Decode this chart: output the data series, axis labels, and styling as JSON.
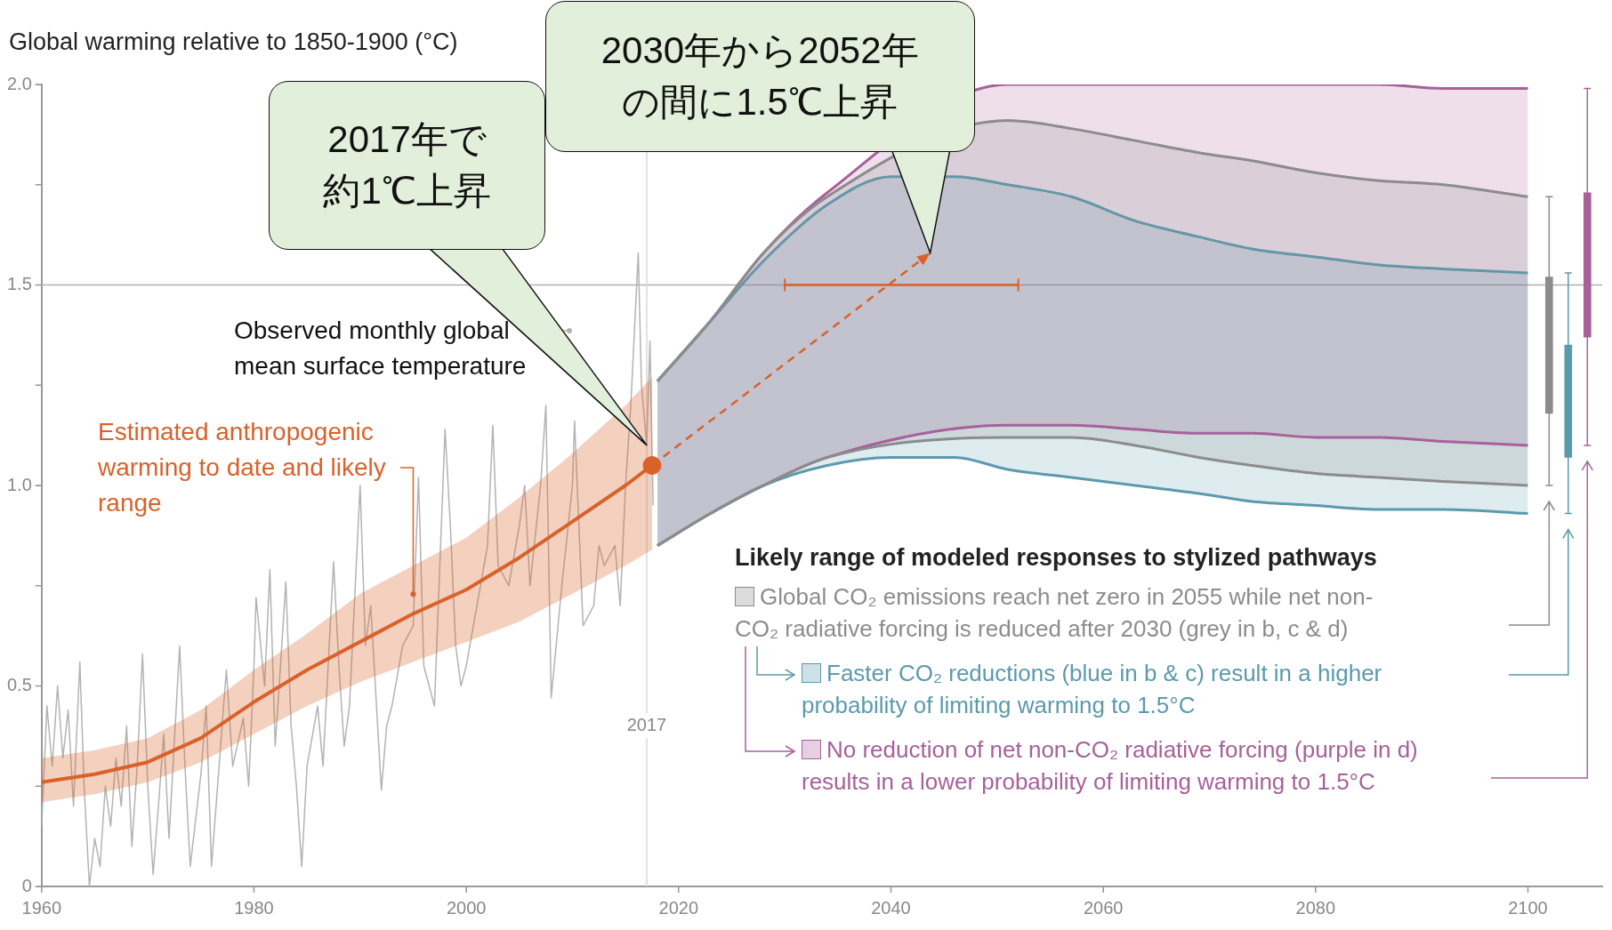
{
  "chart_data": {
    "type": "line",
    "ylabel": "Global warming relative to 1850-1900 (°C)",
    "xlim": [
      1960,
      2107
    ],
    "xticks": [
      1960,
      1980,
      2000,
      2020,
      2040,
      2060,
      2080,
      2100
    ],
    "ylim": [
      0,
      2
    ],
    "yticks": [
      0,
      {
        "value": 0.25,
        "label": null
      },
      0.5,
      {
        "value": 0.75,
        "label": null
      },
      {
        "value": 1,
        "label": "1.0"
      },
      {
        "value": 1.25,
        "label": null
      },
      1.5,
      {
        "value": 1.75,
        "label": null
      },
      {
        "value": 2,
        "label": "2.0"
      }
    ],
    "legend": "bottom right",
    "legend_title": "Likely range of modeled responses to stylized pathways",
    "series": [
      {
        "name": "Observed monthly global mean surface temperature",
        "color": "#b3b3b3",
        "x": [
          1960,
          1960.5,
          1961,
          1961.5,
          1962,
          1962.5,
          1963,
          1963.6,
          1964,
          1964.5,
          1965,
          1965.5,
          1966,
          1966.5,
          1967,
          1967.5,
          1968,
          1968.5,
          1969,
          1969.5,
          1970,
          1970.5,
          1971,
          1971.5,
          1972,
          1973,
          1973.5,
          1974,
          1975,
          1975.5,
          1976,
          1977,
          1977.4,
          1978,
          1979,
          1979.5,
          1980,
          1980.2,
          1981,
          1981.5,
          1982,
          1982.5,
          1983,
          1983.5,
          1984,
          1984.5,
          1985,
          1986,
          1986.5,
          1987.5,
          1988,
          1988.5,
          1989,
          1990,
          1990.5,
          1991,
          1992,
          1992.5,
          1993,
          1994,
          1995,
          1995.5,
          1996,
          1997,
          1998,
          1998.5,
          1999,
          1999.5,
          2000,
          2001,
          2002,
          2002.5,
          2003,
          2004,
          2005,
          2005.5,
          2006,
          2007,
          2007.5,
          2008,
          2009,
          2010,
          2010.2,
          2011,
          2012,
          2012.5,
          2013,
          2014,
          2014.5,
          2015,
          2015.5,
          2016.2,
          2016.5,
          2017,
          2017.3,
          2017.6
        ],
        "values": [
          0.15,
          0.45,
          0.3,
          0.5,
          0.32,
          0.44,
          0.2,
          0.56,
          0.25,
          0,
          0.12,
          0.05,
          0.25,
          0.15,
          0.32,
          0.2,
          0.4,
          0.1,
          0.3,
          0.58,
          0.25,
          0.03,
          0.2,
          0.38,
          0.12,
          0.6,
          0.3,
          0.05,
          0.28,
          0.45,
          0.05,
          0.4,
          0.54,
          0.3,
          0.42,
          0.25,
          0.55,
          0.72,
          0.5,
          0.79,
          0.35,
          0.55,
          0.76,
          0.4,
          0.25,
          0.05,
          0.3,
          0.45,
          0.3,
          0.81,
          0.55,
          0.35,
          0.45,
          1.0,
          0.6,
          0.7,
          0.24,
          0.4,
          0.45,
          0.6,
          0.65,
          1.02,
          0.55,
          0.45,
          1.14,
          0.9,
          0.6,
          0.5,
          0.55,
          0.7,
          0.85,
          1.15,
          0.8,
          0.75,
          0.9,
          1.0,
          0.75,
          1.0,
          1.2,
          0.47,
          0.75,
          1.0,
          1.16,
          0.65,
          0.7,
          0.85,
          0.8,
          0.85,
          0.7,
          1.0,
          1.2,
          1.58,
          1.25,
          1.1,
          1.36,
          0.95
        ]
      },
      {
        "name": "Estimated anthropogenic warming to date and likely range",
        "color": "#d9622b",
        "x": [
          1960,
          1965,
          1970,
          1975,
          1980,
          1985,
          1990,
          1995,
          2000,
          2005,
          2010,
          2015,
          2017.5
        ],
        "values": [
          0.26,
          0.28,
          0.31,
          0.37,
          0.46,
          0.54,
          0.61,
          0.68,
          0.74,
          0.82,
          0.91,
          1.0,
          1.05
        ],
        "lower": [
          0.21,
          0.23,
          0.26,
          0.31,
          0.38,
          0.45,
          0.51,
          0.56,
          0.61,
          0.66,
          0.73,
          0.8,
          0.84
        ],
        "upper": [
          0.32,
          0.34,
          0.37,
          0.44,
          0.54,
          0.63,
          0.73,
          0.8,
          0.87,
          0.97,
          1.08,
          1.2,
          1.27
        ]
      },
      {
        "color": "#8c8c8c",
        "x": [
          2018,
          2023,
          2028,
          2034,
          2051,
          2057,
          2063,
          2069,
          2074,
          2080,
          2086,
          2092,
          2100
        ],
        "values": [
          0.85,
          0.93,
          1.0,
          1.07,
          1.12,
          1.12,
          1.1,
          1.07,
          1.05,
          1.03,
          1.02,
          1.01,
          1.0
        ]
      },
      {
        "type": "area",
        "name": "Global CO₂ emissions reach net zero in 2055 while net non-CO₂ radiative forcing is reduced after 2030 (grey in b, c & d)",
        "color": "#8c8c8c",
        "x": [
          2018,
          2023,
          2028,
          2034,
          2051,
          2057,
          2063,
          2069,
          2074,
          2080,
          2086,
          2092,
          2100
        ],
        "values": [
          1.26,
          1.41,
          1.58,
          1.72,
          1.91,
          1.89,
          1.86,
          1.83,
          1.81,
          1.78,
          1.76,
          1.75,
          1.72
        ]
      },
      {
        "color": "#5b9aad",
        "x": [
          2018,
          2023,
          2028,
          2034,
          2040,
          2046,
          2051,
          2057,
          2063,
          2069,
          2074,
          2080,
          2086,
          2092,
          2100
        ],
        "values": [
          0.85,
          0.93,
          1.0,
          1.05,
          1.07,
          1.07,
          1.04,
          1.02,
          1.0,
          0.98,
          0.96,
          0.95,
          0.94,
          0.94,
          0.93
        ]
      },
      {
        "type": "area",
        "name": "Faster CO₂ reductions (blue in b & c) result in a higher probability of limiting warming to 1.5°C",
        "color": "#5b9aad",
        "x": [
          2018,
          2023,
          2028,
          2034,
          2040,
          2046,
          2051,
          2057,
          2063,
          2069,
          2074,
          2080,
          2086,
          2092,
          2100
        ],
        "values": [
          1.26,
          1.41,
          1.56,
          1.7,
          1.77,
          1.77,
          1.75,
          1.72,
          1.66,
          1.62,
          1.59,
          1.57,
          1.55,
          1.54,
          1.53
        ]
      },
      {
        "color": "#a8609b",
        "x": [
          2018,
          2023,
          2028,
          2034,
          2051,
          2057,
          2063,
          2069,
          2074,
          2080,
          2086,
          2092,
          2100
        ],
        "values": [
          0.85,
          0.93,
          1.0,
          1.07,
          1.15,
          1.15,
          1.14,
          1.13,
          1.13,
          1.12,
          1.12,
          1.11,
          1.1
        ]
      },
      {
        "type": "area",
        "name": "No reduction of net non-CO₂ radiative forcing (purple in d) results in a lower probability of limiting warming to 1.5°C",
        "color": "#a8609b",
        "x": [
          2018,
          2023,
          2028,
          2034,
          2051,
          2057,
          2063,
          2069,
          2074,
          2080,
          2086,
          2092,
          2100
        ],
        "values": [
          1.26,
          1.41,
          1.58,
          1.73,
          2.0,
          2.0,
          2.0,
          2.0,
          2.0,
          2.0,
          2.0,
          1.99,
          1.99
        ]
      },
      {
        "type": "bar",
        "color": "#8c8c8c",
        "x": [
          2102
        ],
        "base": [
          1.18
        ],
        "values": [
          0.34
        ],
        "errors": [
          [
            1.0,
            1.72
          ]
        ]
      },
      {
        "type": "bar",
        "color": "#5b9aad",
        "x": [
          2103.8
        ],
        "base": [
          1.07
        ],
        "values": [
          0.28
        ],
        "errors": [
          [
            0.93,
            1.53
          ]
        ]
      },
      {
        "type": "bar",
        "color": "#a8609b",
        "x": [
          2105.6
        ],
        "base": [
          1.37
        ],
        "values": [
          0.36
        ],
        "errors": [
          [
            1.1,
            1.99
          ]
        ]
      },
      {
        "type": "scatter",
        "color": "#d9622b",
        "marker": "circle",
        "x": [
          2017.5
        ],
        "values": [
          1.05
        ]
      },
      {
        "color": "#d9622b",
        "marker": "none",
        "x": [
          2030,
          2052
        ],
        "values": [
          1.5,
          1.5
        ]
      }
    ],
    "ref_lines": [
      {
        "axis": "y",
        "value": 1.5,
        "color": "#b0b0b0"
      },
      {
        "axis": "x",
        "value": 2017,
        "label": "2017",
        "color": "#d9d9d9"
      }
    ],
    "annotations": [
      "2017年で約1℃上昇",
      "2030年から2052年の間に1.5℃上昇"
    ]
  }
}
